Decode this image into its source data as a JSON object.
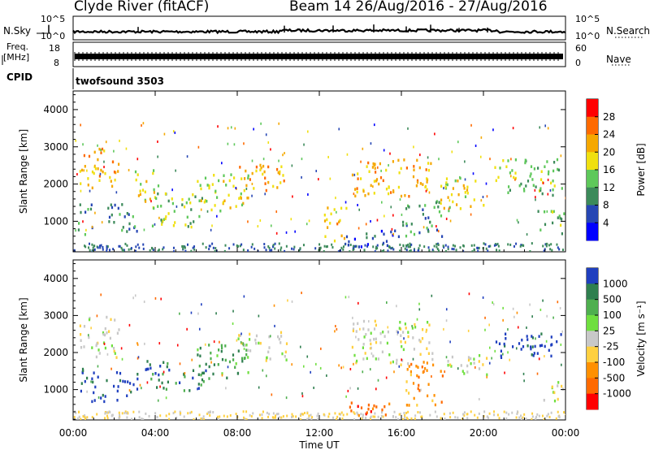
{
  "header": {
    "title": "Clyde River (fitACF)",
    "beam_info": "Beam 14 26/Aug/2016 - 27/Aug/2016"
  },
  "noise_panel": {
    "left_label": "N.Sky",
    "right_label": "N.Search",
    "left_ticks": [
      "10^5",
      "10^0"
    ],
    "right_ticks": [
      "10^5",
      "10^0"
    ]
  },
  "freq_panel": {
    "left_label_1": "Freq.",
    "left_label_2": "[MHz]",
    "left_ticks": [
      "18",
      "8"
    ],
    "right_label": "Nave",
    "right_ticks": [
      "60",
      "0"
    ]
  },
  "cpid": {
    "label": "CPID",
    "program": "twofsound 3503"
  },
  "power_colorbar": {
    "label": "Power [dB]",
    "ticks": [
      "28",
      "24",
      "20",
      "16",
      "12",
      "8",
      "4"
    ],
    "colors": [
      "#ff0000",
      "#ff6a00",
      "#f5a800",
      "#f0e010",
      "#5ec85a",
      "#3c8a5a",
      "#2646b4",
      "#0000ff"
    ]
  },
  "velocity_colorbar": {
    "label": "Velocity [m s⁻¹]",
    "ticks": [
      "1000",
      "500",
      "100",
      "25",
      "-25",
      "-100",
      "-500",
      "-1000"
    ],
    "colors": [
      "#1f3fbf",
      "#2f7f4f",
      "#4faf4f",
      "#6fdf3f",
      "#c8c8c8",
      "#ffd040",
      "#ff9000",
      "#ff6a00",
      "#ff0000"
    ]
  },
  "chart_data": [
    {
      "type": "heatmap",
      "title": "Power",
      "ylabel": "Slant Range [km]",
      "y_ticks": [
        1000,
        2000,
        3000,
        4000
      ],
      "ylim": [
        180,
        4500
      ],
      "x_ticks": [
        "00:00",
        "04:00",
        "08:00",
        "12:00",
        "16:00",
        "20:00",
        "00:00"
      ],
      "xlim_hours": [
        0,
        24
      ],
      "colorbar": "Power [dB]",
      "regions": [
        {
          "t0": 0.2,
          "t1": 0.9,
          "r0": 650,
          "r1": 1500,
          "level": 5
        },
        {
          "t0": 0.3,
          "t1": 2.2,
          "r0": 1900,
          "r1": 3000,
          "level": 2
        },
        {
          "t0": 1.5,
          "t1": 3.2,
          "r0": 750,
          "r1": 1550,
          "level": 5
        },
        {
          "t0": 3.0,
          "t1": 4.2,
          "r0": 1400,
          "r1": 2400,
          "level": 3
        },
        {
          "t0": 3.8,
          "t1": 6.3,
          "r0": 850,
          "r1": 1800,
          "level": 4
        },
        {
          "t0": 6.0,
          "t1": 8.6,
          "r0": 1300,
          "r1": 2300,
          "level": 3
        },
        {
          "t0": 8.0,
          "t1": 10.4,
          "r0": 1800,
          "r1": 2600,
          "level": 2
        },
        {
          "t0": 12.2,
          "t1": 13.3,
          "r0": 500,
          "r1": 1400,
          "level": 2
        },
        {
          "t0": 13.2,
          "t1": 16.0,
          "r0": 350,
          "r1": 800,
          "level": 6
        },
        {
          "t0": 13.5,
          "t1": 17.5,
          "r0": 1700,
          "r1": 2700,
          "level": 2
        },
        {
          "t0": 16.0,
          "t1": 18.0,
          "r0": 600,
          "r1": 1600,
          "level": 5
        },
        {
          "t0": 17.8,
          "t1": 20.0,
          "r0": 1300,
          "r1": 2200,
          "level": 3
        },
        {
          "t0": 20.5,
          "t1": 23.8,
          "r0": 1700,
          "r1": 2700,
          "level": 4
        },
        {
          "t0": 22.6,
          "t1": 23.9,
          "r0": 700,
          "r1": 1400,
          "level": 4
        }
      ]
    },
    {
      "type": "heatmap",
      "title": "Velocity",
      "ylabel": "Slant Range [km]",
      "y_ticks": [
        1000,
        2000,
        3000,
        4000
      ],
      "ylim": [
        180,
        4500
      ],
      "x_ticks": [
        "00:00",
        "04:00",
        "08:00",
        "12:00",
        "16:00",
        "20:00",
        "00:00"
      ],
      "xlim_hours": [
        0,
        24
      ],
      "xlabel": "Time UT",
      "colorbar": "Velocity [m s⁻¹]",
      "regions": [
        {
          "t0": 0.2,
          "t1": 1.6,
          "r0": 700,
          "r1": 1600,
          "level": 0
        },
        {
          "t0": 0.3,
          "t1": 2.2,
          "r0": 1900,
          "r1": 3000,
          "level": 4
        },
        {
          "t0": 1.8,
          "t1": 3.1,
          "r0": 700,
          "r1": 1500,
          "level": 0
        },
        {
          "t0": 3.5,
          "t1": 6.5,
          "r0": 1000,
          "r1": 1800,
          "level": 1
        },
        {
          "t0": 6.0,
          "t1": 8.6,
          "r0": 1300,
          "r1": 2300,
          "level": 2
        },
        {
          "t0": 8.0,
          "t1": 10.4,
          "r0": 1800,
          "r1": 2600,
          "level": 4
        },
        {
          "t0": 13.4,
          "t1": 15.4,
          "r0": 250,
          "r1": 800,
          "level": 7
        },
        {
          "t0": 13.5,
          "t1": 17.5,
          "r0": 1700,
          "r1": 2900,
          "level": 4
        },
        {
          "t0": 16.2,
          "t1": 18.0,
          "r0": 600,
          "r1": 1800,
          "level": 6
        },
        {
          "t0": 18.0,
          "t1": 20.2,
          "r0": 1400,
          "r1": 2000,
          "level": 4
        },
        {
          "t0": 20.5,
          "t1": 23.8,
          "r0": 1900,
          "r1": 2600,
          "level": 0
        },
        {
          "t0": 22.8,
          "t1": 23.9,
          "r0": 700,
          "r1": 1300,
          "level": 4
        }
      ]
    }
  ]
}
